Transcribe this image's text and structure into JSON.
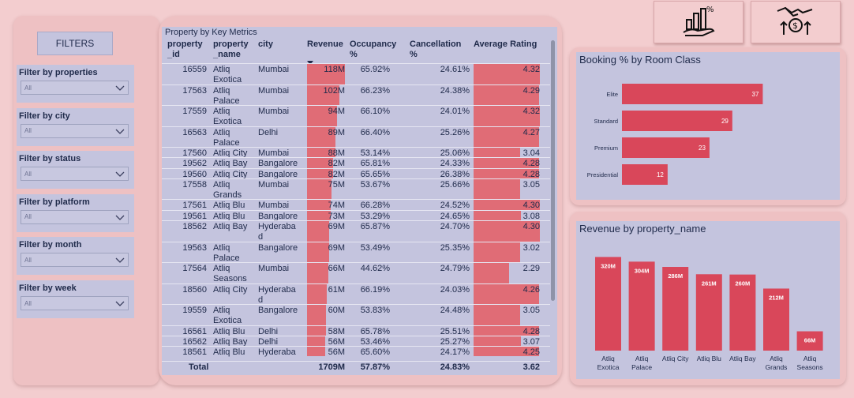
{
  "filters": {
    "title": "FILTERS",
    "items": [
      {
        "label": "Filter by properties",
        "value": "All"
      },
      {
        "label": "Filter by city",
        "value": "All"
      },
      {
        "label": "Filter by status",
        "value": "All"
      },
      {
        "label": "Filter by platform",
        "value": "All"
      },
      {
        "label": "Filter by month",
        "value": "All"
      },
      {
        "label": "Filter by week",
        "value": "All"
      }
    ]
  },
  "table": {
    "title": "Property by Key Metrics",
    "headers": [
      "property\n_id",
      "property\n_name",
      "city",
      "Revenue",
      "Occupancy\n%",
      "Cancellation\n%",
      "Average Rating"
    ],
    "rows": [
      {
        "id": "16559",
        "name": "Atliq\nExotica",
        "city": "Mumbai",
        "revenue": "118M",
        "rev_value": 118,
        "occupancy": "65.92%",
        "cancellation": "24.61%",
        "rating": "4.32",
        "rating_value": 4.32
      },
      {
        "id": "17563",
        "name": "Atliq\nPalace",
        "city": "Mumbai",
        "revenue": "102M",
        "rev_value": 102,
        "occupancy": "66.23%",
        "cancellation": "24.38%",
        "rating": "4.29",
        "rating_value": 4.29
      },
      {
        "id": "17559",
        "name": "Atliq\nExotica",
        "city": "Mumbai",
        "revenue": "94M",
        "rev_value": 94,
        "occupancy": "66.10%",
        "cancellation": "24.01%",
        "rating": "4.32",
        "rating_value": 4.32
      },
      {
        "id": "16563",
        "name": "Atliq\nPalace",
        "city": "Delhi",
        "revenue": "89M",
        "rev_value": 89,
        "occupancy": "66.40%",
        "cancellation": "25.26%",
        "rating": "4.27",
        "rating_value": 4.27
      },
      {
        "id": "17560",
        "name": "Atliq City",
        "city": "Mumbai",
        "revenue": "88M",
        "rev_value": 88,
        "occupancy": "53.14%",
        "cancellation": "25.06%",
        "rating": "3.04",
        "rating_value": 3.04
      },
      {
        "id": "19562",
        "name": "Atliq Bay",
        "city": "Bangalore",
        "revenue": "82M",
        "rev_value": 82,
        "occupancy": "65.81%",
        "cancellation": "24.33%",
        "rating": "4.28",
        "rating_value": 4.28
      },
      {
        "id": "19560",
        "name": "Atliq City",
        "city": "Bangalore",
        "revenue": "82M",
        "rev_value": 82,
        "occupancy": "65.65%",
        "cancellation": "26.38%",
        "rating": "4.28",
        "rating_value": 4.28
      },
      {
        "id": "17558",
        "name": "Atliq\nGrands",
        "city": "Mumbai",
        "revenue": "75M",
        "rev_value": 75,
        "occupancy": "53.67%",
        "cancellation": "25.66%",
        "rating": "3.05",
        "rating_value": 3.05
      },
      {
        "id": "17561",
        "name": "Atliq Blu",
        "city": "Mumbai",
        "revenue": "74M",
        "rev_value": 74,
        "occupancy": "66.28%",
        "cancellation": "24.52%",
        "rating": "4.30",
        "rating_value": 4.3
      },
      {
        "id": "19561",
        "name": "Atliq Blu",
        "city": "Bangalore",
        "revenue": "73M",
        "rev_value": 73,
        "occupancy": "53.29%",
        "cancellation": "24.65%",
        "rating": "3.08",
        "rating_value": 3.08
      },
      {
        "id": "18562",
        "name": "Atliq Bay",
        "city": "Hyderaba\nd",
        "revenue": "69M",
        "rev_value": 69,
        "occupancy": "65.87%",
        "cancellation": "24.70%",
        "rating": "4.30",
        "rating_value": 4.3
      },
      {
        "id": "19563",
        "name": "Atliq\nPalace",
        "city": "Bangalore",
        "revenue": "69M",
        "rev_value": 69,
        "occupancy": "53.49%",
        "cancellation": "25.35%",
        "rating": "3.02",
        "rating_value": 3.02
      },
      {
        "id": "17564",
        "name": "Atliq\nSeasons",
        "city": "Mumbai",
        "revenue": "66M",
        "rev_value": 66,
        "occupancy": "44.62%",
        "cancellation": "24.79%",
        "rating": "2.29",
        "rating_value": 2.29
      },
      {
        "id": "18560",
        "name": "Atliq City",
        "city": "Hyderaba\nd",
        "revenue": "61M",
        "rev_value": 61,
        "occupancy": "66.19%",
        "cancellation": "24.03%",
        "rating": "4.26",
        "rating_value": 4.26
      },
      {
        "id": "19559",
        "name": "Atliq\nExotica",
        "city": "Bangalore",
        "revenue": "60M",
        "rev_value": 60,
        "occupancy": "53.83%",
        "cancellation": "24.48%",
        "rating": "3.05",
        "rating_value": 3.05
      },
      {
        "id": "16561",
        "name": "Atliq Blu",
        "city": "Delhi",
        "revenue": "58M",
        "rev_value": 58,
        "occupancy": "65.78%",
        "cancellation": "25.51%",
        "rating": "4.28",
        "rating_value": 4.28
      },
      {
        "id": "16562",
        "name": "Atliq Bay",
        "city": "Delhi",
        "revenue": "56M",
        "rev_value": 56,
        "occupancy": "53.46%",
        "cancellation": "25.27%",
        "rating": "3.07",
        "rating_value": 3.07
      },
      {
        "id": "18561",
        "name": "Atliq Blu",
        "city": "Hyderaba",
        "revenue": "56M",
        "rev_value": 56,
        "occupancy": "65.60%",
        "cancellation": "24.17%",
        "rating": "4.25",
        "rating_value": 4.25
      }
    ],
    "total": {
      "label": "Total",
      "revenue": "1709M",
      "occupancy": "57.87%",
      "cancellation": "24.83%",
      "rating": "3.62"
    }
  },
  "icons": [
    {
      "name": "business-growth-icon"
    },
    {
      "name": "money-handshake-icon"
    }
  ],
  "colors": {
    "bar": "#d9475a",
    "table_bar": "#e06c76",
    "panel": "#c4c4de",
    "background": "#f3cdcf"
  },
  "chart_data": [
    {
      "type": "bar",
      "orientation": "horizontal",
      "title": "Booking % by Room Class",
      "categories": [
        "Elite",
        "Standard",
        "Premium",
        "Presidential"
      ],
      "values": [
        37,
        29,
        23,
        12
      ],
      "value_labels": [
        "37",
        "29",
        "23",
        "12"
      ],
      "xlim": [
        0,
        45
      ]
    },
    {
      "type": "bar",
      "orientation": "vertical",
      "title": "Revenue by property_name",
      "categories": [
        "Atliq\nExotica",
        "Atliq\nPalace",
        "Atliq City",
        "Atliq Blu",
        "Atliq Bay",
        "Atliq\nGrands",
        "Atliq\nSeasons"
      ],
      "values": [
        320,
        304,
        286,
        261,
        260,
        212,
        66
      ],
      "value_labels": [
        "320M",
        "304M",
        "286M",
        "261M",
        "260M",
        "212M",
        "66M"
      ],
      "ylim": [
        0,
        340
      ]
    }
  ]
}
